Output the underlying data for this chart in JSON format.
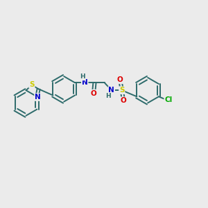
{
  "background_color": "#ebebeb",
  "bond_color": "#2d6b6b",
  "S_color": "#cccc00",
  "N_color": "#0000cc",
  "O_color": "#dd0000",
  "Cl_color": "#00aa00",
  "H_color": "#2d6b6b",
  "figsize": [
    3.0,
    3.0
  ],
  "dpi": 100,
  "xlim": [
    0,
    10
  ],
  "ylim": [
    2,
    8
  ]
}
